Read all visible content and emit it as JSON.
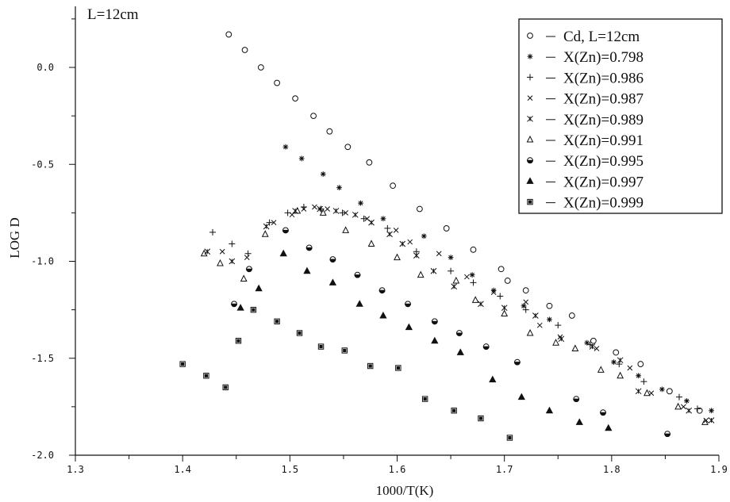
{
  "chart_data": {
    "type": "scatter",
    "annotation": "L=12cm",
    "xlabel": "1000/T(K)",
    "ylabel": "LOG D",
    "xlim": [
      1.3,
      1.9
    ],
    "ylim": [
      -2.0,
      0.3
    ],
    "x_ticks": [
      "1.3",
      "1.4",
      "1.5",
      "1.6",
      "1.7",
      "1.8",
      "1.9"
    ],
    "y_ticks": [
      "-2.0",
      "-1.5",
      "-1.0",
      "-0.5",
      "0.0"
    ],
    "legend_position": "top-right",
    "grid": false,
    "series": [
      {
        "name": "Cd, L=12cm",
        "marker": "open-circle",
        "x": [
          1.443,
          1.458,
          1.473,
          1.488,
          1.505,
          1.522,
          1.537,
          1.554,
          1.574,
          1.596,
          1.621,
          1.646,
          1.671,
          1.697,
          1.703,
          1.72,
          1.742,
          1.763,
          1.783,
          1.804,
          1.827,
          1.854,
          1.882
        ],
        "y": [
          0.17,
          0.09,
          0.0,
          -0.08,
          -0.16,
          -0.25,
          -0.33,
          -0.41,
          -0.49,
          -0.61,
          -0.73,
          -0.83,
          -0.94,
          -1.04,
          -1.1,
          -1.15,
          -1.23,
          -1.28,
          -1.41,
          -1.47,
          -1.53,
          -1.67,
          -1.77
        ]
      },
      {
        "name": "X(Zn)=0.798",
        "marker": "asterisk",
        "x": [
          1.496,
          1.511,
          1.531,
          1.546,
          1.566,
          1.587,
          1.625,
          1.65,
          1.67,
          1.69,
          1.718,
          1.742,
          1.777,
          1.802,
          1.825,
          1.847,
          1.87,
          1.893
        ],
        "y": [
          -0.41,
          -0.47,
          -0.55,
          -0.62,
          -0.7,
          -0.78,
          -0.87,
          -0.98,
          -1.07,
          -1.15,
          -1.23,
          -1.3,
          -1.42,
          -1.52,
          -1.59,
          -1.66,
          -1.72,
          -1.77
        ]
      },
      {
        "name": "X(Zn)=0.986",
        "marker": "plus",
        "x": [
          1.428,
          1.446,
          1.461,
          1.481,
          1.498,
          1.513,
          1.529,
          1.549,
          1.569,
          1.591,
          1.618,
          1.65,
          1.671,
          1.696,
          1.72,
          1.75,
          1.78,
          1.807,
          1.83,
          1.863,
          1.88
        ],
        "y": [
          -0.85,
          -0.91,
          -0.96,
          -0.8,
          -0.75,
          -0.72,
          -0.73,
          -0.75,
          -0.78,
          -0.83,
          -0.95,
          -1.05,
          -1.11,
          -1.18,
          -1.25,
          -1.33,
          -1.43,
          -1.53,
          -1.62,
          -1.7,
          -1.76
        ]
      },
      {
        "name": "X(Zn)=0.987",
        "marker": "cross",
        "x": [
          1.437,
          1.46,
          1.485,
          1.502,
          1.513,
          1.523,
          1.535,
          1.552,
          1.572,
          1.599,
          1.612,
          1.639,
          1.665,
          1.69,
          1.72,
          1.733,
          1.752,
          1.786,
          1.817,
          1.837,
          1.867,
          1.888
        ],
        "y": [
          -0.95,
          -0.98,
          -0.8,
          -0.76,
          -0.73,
          -0.72,
          -0.73,
          -0.75,
          -0.78,
          -0.84,
          -0.9,
          -0.96,
          -1.08,
          -1.16,
          -1.21,
          -1.33,
          -1.39,
          -1.45,
          -1.55,
          -1.68,
          -1.75,
          -1.82
        ]
      },
      {
        "name": "X(Zn)=0.989",
        "marker": "star",
        "x": [
          1.423,
          1.446,
          1.478,
          1.505,
          1.528,
          1.543,
          1.561,
          1.576,
          1.593,
          1.605,
          1.618,
          1.634,
          1.653,
          1.678,
          1.7,
          1.729,
          1.753,
          1.782,
          1.808,
          1.825,
          1.872,
          1.893
        ],
        "y": [
          -0.95,
          -1.0,
          -0.82,
          -0.74,
          -0.73,
          -0.74,
          -0.76,
          -0.8,
          -0.86,
          -0.91,
          -0.97,
          -1.05,
          -1.13,
          -1.22,
          -1.24,
          -1.28,
          -1.4,
          -1.44,
          -1.51,
          -1.67,
          -1.77,
          -1.82
        ]
      },
      {
        "name": "X(Zn)=0.991",
        "marker": "triangle",
        "x": [
          1.42,
          1.435,
          1.457,
          1.477,
          1.507,
          1.531,
          1.552,
          1.576,
          1.6,
          1.622,
          1.655,
          1.673,
          1.7,
          1.724,
          1.748,
          1.766,
          1.79,
          1.808,
          1.833,
          1.862,
          1.887
        ],
        "y": [
          -0.96,
          -1.01,
          -1.09,
          -0.86,
          -0.74,
          -0.75,
          -0.84,
          -0.91,
          -0.98,
          -1.07,
          -1.1,
          -1.2,
          -1.27,
          -1.37,
          -1.42,
          -1.45,
          -1.56,
          -1.59,
          -1.68,
          -1.75,
          -1.83
        ]
      },
      {
        "name": "X(Zn)=0.995",
        "marker": "half-circle",
        "x": [
          1.448,
          1.462,
          1.496,
          1.518,
          1.54,
          1.563,
          1.586,
          1.61,
          1.635,
          1.658,
          1.683,
          1.712,
          1.767,
          1.792,
          1.852
        ],
        "y": [
          -1.22,
          -1.04,
          -0.84,
          -0.93,
          -0.99,
          -1.07,
          -1.15,
          -1.22,
          -1.31,
          -1.37,
          -1.44,
          -1.52,
          -1.71,
          -1.78,
          -1.89
        ]
      },
      {
        "name": "X(Zn)=0.997",
        "marker": "filled-triangle",
        "x": [
          1.454,
          1.471,
          1.494,
          1.516,
          1.54,
          1.565,
          1.587,
          1.611,
          1.635,
          1.659,
          1.689,
          1.716,
          1.742,
          1.77,
          1.797
        ],
        "y": [
          -1.24,
          -1.14,
          -0.96,
          -1.05,
          -1.11,
          -1.22,
          -1.28,
          -1.34,
          -1.41,
          -1.47,
          -1.61,
          -1.7,
          -1.77,
          -1.83,
          -1.86
        ]
      },
      {
        "name": "X(Zn)=0.999",
        "marker": "square",
        "x": [
          1.4,
          1.422,
          1.44,
          1.452,
          1.466,
          1.488,
          1.509,
          1.529,
          1.551,
          1.575,
          1.601,
          1.626,
          1.653,
          1.678,
          1.705
        ],
        "y": [
          -1.53,
          -1.59,
          -1.65,
          -1.41,
          -1.25,
          -1.31,
          -1.37,
          -1.44,
          -1.46,
          -1.54,
          -1.55,
          -1.71,
          -1.77,
          -1.81,
          -1.91
        ]
      }
    ]
  }
}
